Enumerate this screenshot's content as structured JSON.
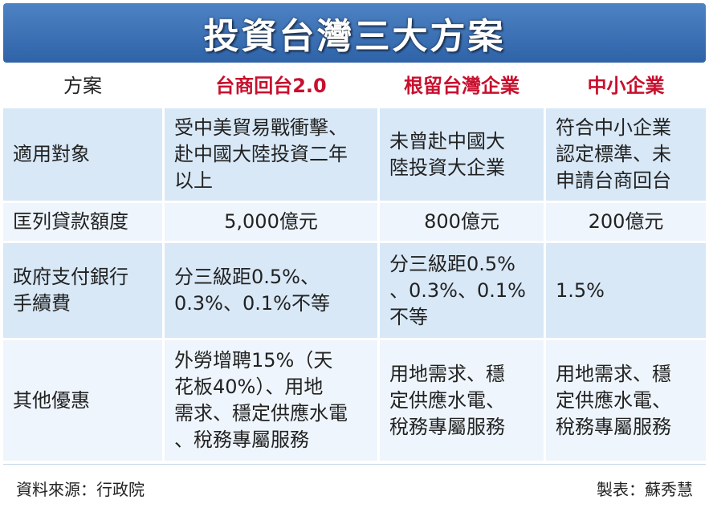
{
  "title": "投資台灣三大方案",
  "table": {
    "header": [
      "方案",
      "台商回台2.0",
      "根留台灣企業",
      "中小企業"
    ],
    "rows": [
      {
        "label": "適用對象",
        "cells": [
          "受中美貿易戰衝擊、\n赴中國大陸投資二年\n以上",
          "未曾赴中國大\n陸投資大企業",
          "符合中小企業\n認定標準、未\n申請台商回台"
        ]
      },
      {
        "label": "匡列貸款額度",
        "cells": [
          "5,000億元",
          "800億元",
          "200億元"
        ]
      },
      {
        "label": "政府支付銀行\n手續費",
        "cells": [
          "分三級距0.5%、\n0.3%、0.1%不等",
          "分三級距0.5%\n、0.3%、0.1%\n不等",
          "1.5%"
        ]
      },
      {
        "label": "其他優惠",
        "cells": [
          "外勞增聘15%（天\n花板40%）、用地\n需求、穩定供應水電\n、稅務專屬服務",
          "用地需求、穩\n定供應水電、\n稅務專屬服務",
          "用地需求、穩\n定供應水電、\n稅務專屬服務"
        ]
      }
    ]
  },
  "footer": {
    "source": "資料來源：行政院",
    "author": "製表：蘇秀慧"
  },
  "colors": {
    "title_bg": "#3a6fb5",
    "header_text": "#c8102e",
    "row_blue": "#d8e8f7",
    "row_light": "#eef5fc"
  }
}
